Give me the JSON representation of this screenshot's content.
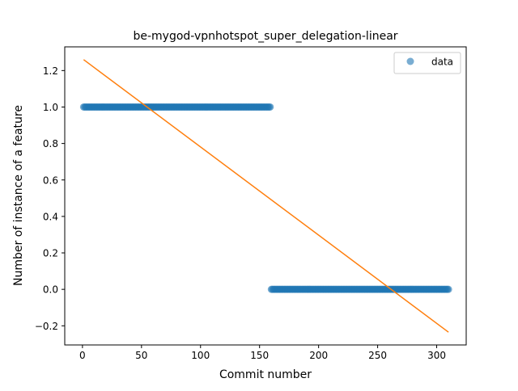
{
  "chart_data": {
    "type": "scatter",
    "title": "be-mygod-vpnhotspot_super_delegation-linear",
    "xlabel": "Commit number",
    "ylabel": "Number of instance of a feature",
    "xlim": [
      -15,
      325
    ],
    "ylim": [
      -0.305,
      1.33
    ],
    "xticks": [
      0,
      50,
      100,
      150,
      200,
      250,
      300
    ],
    "xtick_labels": [
      "0",
      "50",
      "100",
      "150",
      "200",
      "250",
      "300"
    ],
    "yticks": [
      -0.2,
      0.0,
      0.2,
      0.4,
      0.6,
      0.8,
      1.0,
      1.2
    ],
    "ytick_labels": [
      "−0.2",
      "0.0",
      "0.2",
      "0.4",
      "0.6",
      "0.8",
      "1.0",
      "1.2"
    ],
    "grid": false,
    "legend": {
      "position": "top-right",
      "entries": [
        "data"
      ]
    },
    "colors": {
      "data": "#1f77b4",
      "fit": "#ff7f0e"
    },
    "series": [
      {
        "name": "data",
        "kind": "scatter",
        "segments": [
          {
            "x_start": 1,
            "x_end": 159,
            "y": 1.0
          },
          {
            "x_start": 160,
            "x_end": 310,
            "y": 0.0
          }
        ]
      },
      {
        "kind": "line",
        "x": [
          1,
          310
        ],
        "y": [
          1.26,
          -0.235
        ]
      }
    ]
  }
}
